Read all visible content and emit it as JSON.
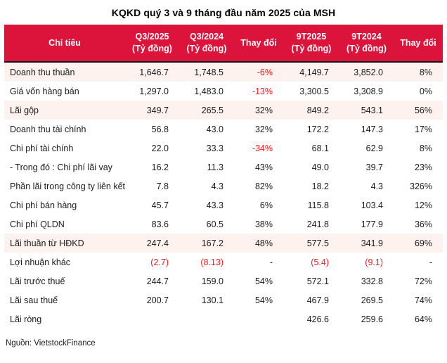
{
  "title": "KQKD quý 3 và 9 tháng đầu năm 2025 của MSH",
  "colors": {
    "header_bg": "#DC143C",
    "header_text": "#FFFFFF",
    "header_border_bottom": "#14141E",
    "highlight_row_bg": "#FDF2EE",
    "negative_text": "#ED1C24",
    "body_text": "#1A1A1A"
  },
  "source_note": "Nguồn: VietstockFinance",
  "chart_data": {
    "type": "table",
    "title": "KQKD quý 3 và 9 tháng đầu năm 2025 của MSH",
    "columns": [
      {
        "label": "Chỉ tiêu",
        "sublabel": ""
      },
      {
        "label": "Q3/2025",
        "sublabel": "(Tỷ đồng)"
      },
      {
        "label": "Q3/2024",
        "sublabel": "(Tỷ đồng)"
      },
      {
        "label": "Thay đổi",
        "sublabel": ""
      },
      {
        "label": "9T2025",
        "sublabel": "(Tỷ đồng)"
      },
      {
        "label": "9T2024",
        "sublabel": "(Tỷ đồng)"
      },
      {
        "label": "Thay đổi",
        "sublabel": ""
      }
    ],
    "rows": [
      {
        "label": "Doanh thu thuần",
        "highlight": true,
        "cells": [
          {
            "v": "1,646.7"
          },
          {
            "v": "1,748.5"
          },
          {
            "v": "-6%",
            "neg": true
          },
          {
            "v": "4,149.7"
          },
          {
            "v": "3,852.0"
          },
          {
            "v": "8%"
          }
        ]
      },
      {
        "label": "Giá vốn hàng bán",
        "highlight": false,
        "cells": [
          {
            "v": "1,297.0"
          },
          {
            "v": "1,483.0"
          },
          {
            "v": "-13%",
            "neg": true
          },
          {
            "v": "3,300.5"
          },
          {
            "v": "3,308.9"
          },
          {
            "v": "0%"
          }
        ]
      },
      {
        "label": "Lãi gộp",
        "highlight": true,
        "cells": [
          {
            "v": "349.7"
          },
          {
            "v": "265.5"
          },
          {
            "v": "32%"
          },
          {
            "v": "849.2"
          },
          {
            "v": "543.1"
          },
          {
            "v": "56%"
          }
        ]
      },
      {
        "label": "Doanh thu tài chính",
        "highlight": false,
        "cells": [
          {
            "v": "56.8"
          },
          {
            "v": "43.0"
          },
          {
            "v": "32%"
          },
          {
            "v": "172.2"
          },
          {
            "v": "147.3"
          },
          {
            "v": "17%"
          }
        ]
      },
      {
        "label": "Chi phí tài chính",
        "highlight": false,
        "cells": [
          {
            "v": "22.0"
          },
          {
            "v": "33.3"
          },
          {
            "v": "-34%",
            "neg": true
          },
          {
            "v": "68.1"
          },
          {
            "v": "62.9"
          },
          {
            "v": "8%"
          }
        ]
      },
      {
        "label": "- Trong đó : Chi phí lãi vay",
        "highlight": false,
        "cells": [
          {
            "v": "16.2"
          },
          {
            "v": "11.3"
          },
          {
            "v": "43%"
          },
          {
            "v": "49.0"
          },
          {
            "v": "39.7"
          },
          {
            "v": "23%"
          }
        ]
      },
      {
        "label": "Phần lãi trong công ty liên kết",
        "highlight": false,
        "cells": [
          {
            "v": "7.8"
          },
          {
            "v": "4.3"
          },
          {
            "v": "82%"
          },
          {
            "v": "18.2"
          },
          {
            "v": "4.3"
          },
          {
            "v": "326%"
          }
        ]
      },
      {
        "label": "Chi phí bán hàng",
        "highlight": false,
        "cells": [
          {
            "v": "45.7"
          },
          {
            "v": "43.3"
          },
          {
            "v": "6%"
          },
          {
            "v": "115.8"
          },
          {
            "v": "103.4"
          },
          {
            "v": "12%"
          }
        ]
      },
      {
        "label": "Chi phí QLDN",
        "highlight": false,
        "cells": [
          {
            "v": "83.6"
          },
          {
            "v": "60.5"
          },
          {
            "v": "38%"
          },
          {
            "v": "241.8"
          },
          {
            "v": "177.9"
          },
          {
            "v": "36%"
          }
        ]
      },
      {
        "label": "Lãi thuần từ HĐKD",
        "highlight": true,
        "cells": [
          {
            "v": "247.4"
          },
          {
            "v": "167.2"
          },
          {
            "v": "48%"
          },
          {
            "v": "577.5"
          },
          {
            "v": "341.9"
          },
          {
            "v": "69%"
          }
        ]
      },
      {
        "label": "Lợi nhuận khác",
        "highlight": false,
        "cells": [
          {
            "v": "(2.7)",
            "neg": true
          },
          {
            "v": "(8.13)",
            "neg": true
          },
          {
            "v": "-"
          },
          {
            "v": "(5.4)",
            "neg": true
          },
          {
            "v": "(9.1)",
            "neg": true
          },
          {
            "v": "-"
          }
        ]
      },
      {
        "label": "Lãi trước thuế",
        "highlight": false,
        "cells": [
          {
            "v": "244.7"
          },
          {
            "v": "159.0"
          },
          {
            "v": "54%"
          },
          {
            "v": "572.1"
          },
          {
            "v": "332.8"
          },
          {
            "v": "72%"
          }
        ]
      },
      {
        "label": "Lãi sau thuế",
        "highlight": false,
        "cells": [
          {
            "v": "200.7"
          },
          {
            "v": "130.1"
          },
          {
            "v": "54%"
          },
          {
            "v": "467.9"
          },
          {
            "v": "269.5"
          },
          {
            "v": "74%"
          }
        ]
      },
      {
        "label": "Lãi ròng",
        "highlight": false,
        "cells": [
          {
            "v": ""
          },
          {
            "v": ""
          },
          {
            "v": ""
          },
          {
            "v": "426.6"
          },
          {
            "v": "259.6"
          },
          {
            "v": "64%"
          }
        ]
      }
    ],
    "source": "Nguồn: VietstockFinance"
  }
}
